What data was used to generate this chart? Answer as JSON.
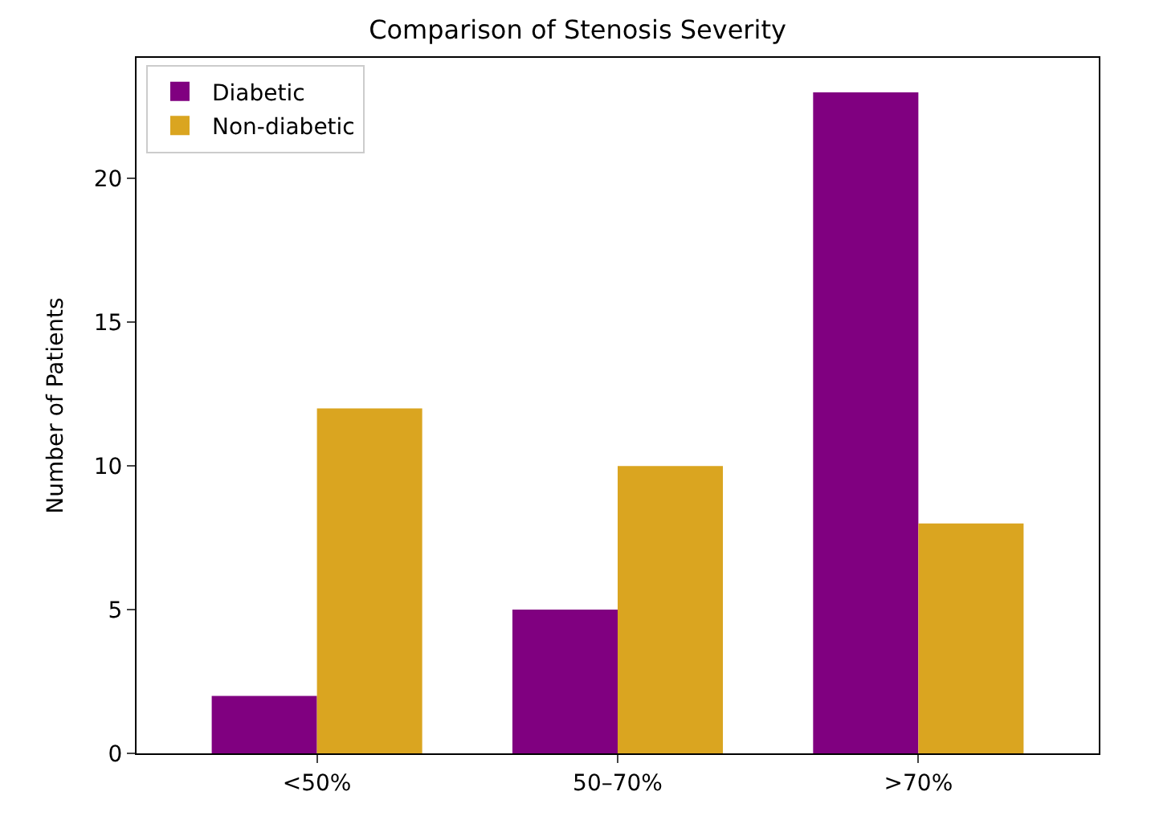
{
  "chart_data": {
    "type": "bar",
    "title": "Comparison of Stenosis Severity",
    "ylabel": "Number of Patients",
    "categories": [
      "<50%",
      "50–70%",
      ">70%"
    ],
    "series": [
      {
        "name": "Diabetic",
        "color": "#800080",
        "values": [
          2,
          5,
          23
        ]
      },
      {
        "name": "Non-diabetic",
        "color": "#daa520",
        "values": [
          12,
          10,
          8
        ]
      }
    ],
    "ylim": [
      0,
      24.2
    ],
    "yticks": [
      0,
      5,
      10,
      15,
      20
    ],
    "grid": false,
    "legend": "top left"
  }
}
